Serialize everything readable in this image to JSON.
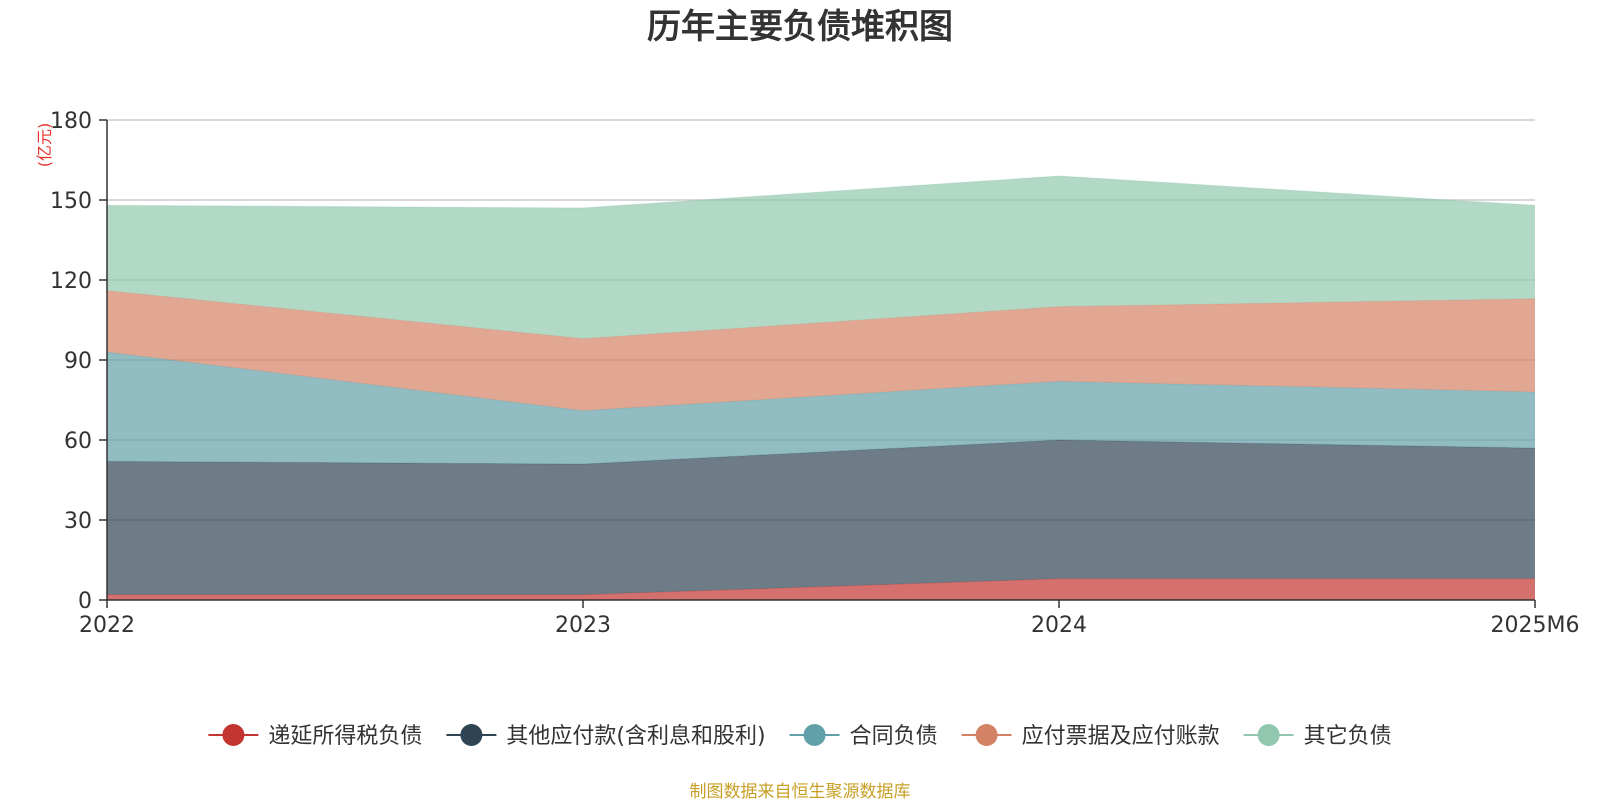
{
  "title": "历年主要负债堆积图",
  "source": "制图数据来自恒生聚源数据库",
  "chart_data": {
    "type": "area",
    "stacked": true,
    "title": "历年主要负债堆积图",
    "unit": "(亿元)",
    "categories": [
      "2022",
      "2023",
      "2024",
      "2025M6"
    ],
    "ylim": [
      0,
      180
    ],
    "yticks": [
      0,
      30,
      60,
      90,
      120,
      150,
      180
    ],
    "grid": true,
    "legend_position": "bottom",
    "series": [
      {
        "name": "递延所得税负债",
        "color": "#c23531",
        "values": [
          2,
          2,
          8,
          8
        ]
      },
      {
        "name": "其他应付款(含利息和股利)",
        "color": "#2f4554",
        "values": [
          50,
          49,
          52,
          49
        ]
      },
      {
        "name": "合同负债",
        "color": "#61a0a8",
        "values": [
          41,
          20,
          22,
          21
        ]
      },
      {
        "name": "应付票据及应付账款",
        "color": "#d48265",
        "values": [
          23,
          27,
          28,
          35
        ]
      },
      {
        "name": "其它负债",
        "color": "#91c7ae",
        "values": [
          32,
          49,
          49,
          35
        ]
      }
    ]
  }
}
